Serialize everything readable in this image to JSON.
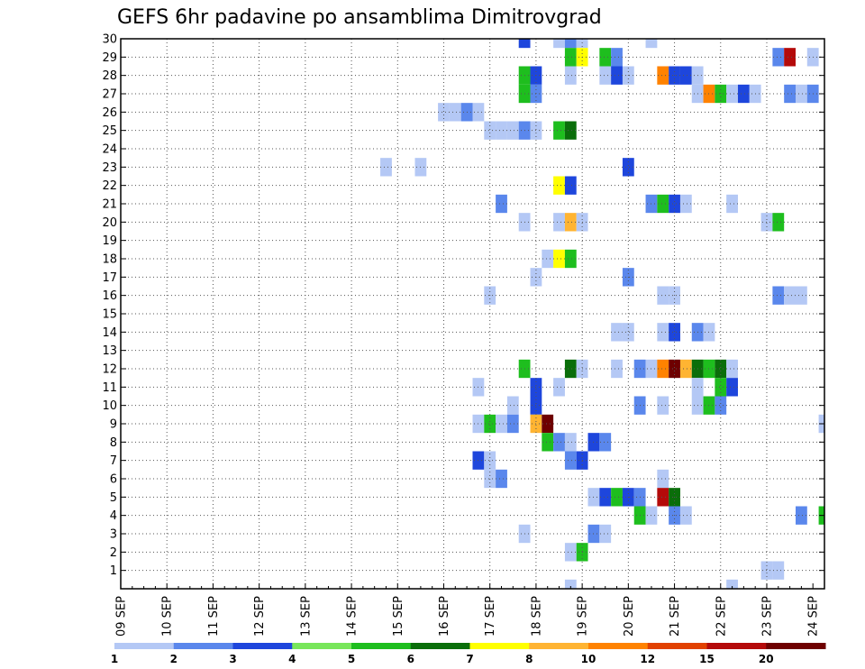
{
  "chart_data": {
    "type": "heatmap",
    "title": "GEFS 6hr padavine po ansamblima Dimitrovgrad",
    "x_tick_labels": [
      "09 SEP",
      "10 SEP",
      "11 SEP",
      "12 SEP",
      "13 SEP",
      "14 SEP",
      "15 SEP",
      "16 SEP",
      "17 SEP",
      "18 SEP",
      "19 SEP",
      "20 SEP",
      "21 SEP",
      "22 SEP",
      "23 SEP",
      "24 SEP"
    ],
    "y_tick_labels": [
      "1",
      "2",
      "3",
      "4",
      "5",
      "6",
      "7",
      "8",
      "9",
      "10",
      "11",
      "12",
      "13",
      "14",
      "15",
      "16",
      "17",
      "18",
      "19",
      "20",
      "21",
      "22",
      "23",
      "24",
      "25",
      "26",
      "27",
      "28",
      "29",
      "30"
    ],
    "xlim": [
      0,
      61
    ],
    "ylim": [
      0,
      30
    ],
    "grid": true,
    "legend": {
      "placement": "bottom",
      "labels": [
        "1",
        "2",
        "3",
        "4",
        "5",
        "6",
        "7",
        "8",
        "10",
        "12",
        "15",
        "20"
      ],
      "colors": [
        "#b4c8f5",
        "#5a87ec",
        "#1e46dc",
        "#78e65a",
        "#1ebe1e",
        "#0a6e0a",
        "#ffff00",
        "#ffb432",
        "#ff8200",
        "#e14100",
        "#b40a0a",
        "#6e0000"
      ]
    },
    "x_unit": "6-hour step from 09 SEP 00Z",
    "y_unit": "ensemble member",
    "cells": [
      {
        "x": 35,
        "y": 30,
        "v": 3
      },
      {
        "x": 38,
        "y": 30,
        "v": 1
      },
      {
        "x": 39,
        "y": 30,
        "v": 2
      },
      {
        "x": 40,
        "y": 30,
        "v": 1
      },
      {
        "x": 46,
        "y": 30,
        "v": 1
      },
      {
        "x": 39,
        "y": 29,
        "v": 5
      },
      {
        "x": 40,
        "y": 29,
        "v": 7
      },
      {
        "x": 42,
        "y": 29,
        "v": 5
      },
      {
        "x": 43,
        "y": 29,
        "v": 2
      },
      {
        "x": 57,
        "y": 29,
        "v": 2
      },
      {
        "x": 58,
        "y": 29,
        "v": 15
      },
      {
        "x": 60,
        "y": 29,
        "v": 1
      },
      {
        "x": 35,
        "y": 28,
        "v": 5
      },
      {
        "x": 36,
        "y": 28,
        "v": 3
      },
      {
        "x": 39,
        "y": 28,
        "v": 1
      },
      {
        "x": 42,
        "y": 28,
        "v": 1
      },
      {
        "x": 43,
        "y": 28,
        "v": 3
      },
      {
        "x": 44,
        "y": 28,
        "v": 1
      },
      {
        "x": 47,
        "y": 28,
        "v": 10
      },
      {
        "x": 48,
        "y": 28,
        "v": 3
      },
      {
        "x": 49,
        "y": 28,
        "v": 3
      },
      {
        "x": 50,
        "y": 28,
        "v": 1
      },
      {
        "x": 35,
        "y": 27,
        "v": 5
      },
      {
        "x": 36,
        "y": 27,
        "v": 2
      },
      {
        "x": 50,
        "y": 27,
        "v": 1
      },
      {
        "x": 51,
        "y": 27,
        "v": 10
      },
      {
        "x": 52,
        "y": 27,
        "v": 5
      },
      {
        "x": 53,
        "y": 27,
        "v": 1
      },
      {
        "x": 54,
        "y": 27,
        "v": 3
      },
      {
        "x": 55,
        "y": 27,
        "v": 1
      },
      {
        "x": 58,
        "y": 27,
        "v": 2
      },
      {
        "x": 59,
        "y": 27,
        "v": 1
      },
      {
        "x": 60,
        "y": 27,
        "v": 2
      },
      {
        "x": 28,
        "y": 26,
        "v": 1
      },
      {
        "x": 29,
        "y": 26,
        "v": 1
      },
      {
        "x": 30,
        "y": 26,
        "v": 2
      },
      {
        "x": 31,
        "y": 26,
        "v": 1
      },
      {
        "x": 32,
        "y": 25,
        "v": 1
      },
      {
        "x": 33,
        "y": 25,
        "v": 1
      },
      {
        "x": 34,
        "y": 25,
        "v": 1
      },
      {
        "x": 35,
        "y": 25,
        "v": 2
      },
      {
        "x": 36,
        "y": 25,
        "v": 1
      },
      {
        "x": 38,
        "y": 25,
        "v": 5
      },
      {
        "x": 39,
        "y": 25,
        "v": 6
      },
      {
        "x": 23,
        "y": 23,
        "v": 1
      },
      {
        "x": 26,
        "y": 23,
        "v": 1
      },
      {
        "x": 44,
        "y": 23,
        "v": 3
      },
      {
        "x": 38,
        "y": 22,
        "v": 7
      },
      {
        "x": 39,
        "y": 22,
        "v": 3
      },
      {
        "x": 33,
        "y": 21,
        "v": 2
      },
      {
        "x": 46,
        "y": 21,
        "v": 2
      },
      {
        "x": 47,
        "y": 21,
        "v": 5
      },
      {
        "x": 48,
        "y": 21,
        "v": 3
      },
      {
        "x": 49,
        "y": 21,
        "v": 1
      },
      {
        "x": 53,
        "y": 21,
        "v": 1
      },
      {
        "x": 35,
        "y": 20,
        "v": 1
      },
      {
        "x": 38,
        "y": 20,
        "v": 1
      },
      {
        "x": 39,
        "y": 20,
        "v": 8
      },
      {
        "x": 40,
        "y": 20,
        "v": 1
      },
      {
        "x": 56,
        "y": 20,
        "v": 1
      },
      {
        "x": 57,
        "y": 20,
        "v": 5
      },
      {
        "x": 37,
        "y": 18,
        "v": 1
      },
      {
        "x": 38,
        "y": 18,
        "v": 7
      },
      {
        "x": 39,
        "y": 18,
        "v": 5
      },
      {
        "x": 36,
        "y": 17,
        "v": 1
      },
      {
        "x": 44,
        "y": 17,
        "v": 2
      },
      {
        "x": 32,
        "y": 16,
        "v": 1
      },
      {
        "x": 47,
        "y": 16,
        "v": 1
      },
      {
        "x": 48,
        "y": 16,
        "v": 1
      },
      {
        "x": 57,
        "y": 16,
        "v": 2
      },
      {
        "x": 58,
        "y": 16,
        "v": 1
      },
      {
        "x": 59,
        "y": 16,
        "v": 1
      },
      {
        "x": 43,
        "y": 14,
        "v": 1
      },
      {
        "x": 44,
        "y": 14,
        "v": 1
      },
      {
        "x": 47,
        "y": 14,
        "v": 1
      },
      {
        "x": 48,
        "y": 14,
        "v": 3
      },
      {
        "x": 50,
        "y": 14,
        "v": 2
      },
      {
        "x": 51,
        "y": 14,
        "v": 1
      },
      {
        "x": 35,
        "y": 12,
        "v": 5
      },
      {
        "x": 39,
        "y": 12,
        "v": 6
      },
      {
        "x": 40,
        "y": 12,
        "v": 1
      },
      {
        "x": 43,
        "y": 12,
        "v": 1
      },
      {
        "x": 45,
        "y": 12,
        "v": 2
      },
      {
        "x": 46,
        "y": 12,
        "v": 1
      },
      {
        "x": 47,
        "y": 12,
        "v": 10
      },
      {
        "x": 48,
        "y": 12,
        "v": 20
      },
      {
        "x": 49,
        "y": 12,
        "v": 8
      },
      {
        "x": 50,
        "y": 12,
        "v": 6
      },
      {
        "x": 51,
        "y": 12,
        "v": 5
      },
      {
        "x": 52,
        "y": 12,
        "v": 6
      },
      {
        "x": 53,
        "y": 12,
        "v": 1
      },
      {
        "x": 31,
        "y": 11,
        "v": 1
      },
      {
        "x": 36,
        "y": 11,
        "v": 3
      },
      {
        "x": 38,
        "y": 11,
        "v": 1
      },
      {
        "x": 50,
        "y": 11,
        "v": 1
      },
      {
        "x": 52,
        "y": 11,
        "v": 5
      },
      {
        "x": 53,
        "y": 11,
        "v": 3
      },
      {
        "x": 34,
        "y": 10,
        "v": 1
      },
      {
        "x": 36,
        "y": 10,
        "v": 3
      },
      {
        "x": 45,
        "y": 10,
        "v": 2
      },
      {
        "x": 47,
        "y": 10,
        "v": 1
      },
      {
        "x": 50,
        "y": 10,
        "v": 1
      },
      {
        "x": 51,
        "y": 10,
        "v": 5
      },
      {
        "x": 52,
        "y": 10,
        "v": 2
      },
      {
        "x": 31,
        "y": 9,
        "v": 1
      },
      {
        "x": 32,
        "y": 9,
        "v": 5
      },
      {
        "x": 33,
        "y": 9,
        "v": 1
      },
      {
        "x": 34,
        "y": 9,
        "v": 2
      },
      {
        "x": 36,
        "y": 9,
        "v": 8
      },
      {
        "x": 37,
        "y": 9,
        "v": 20
      },
      {
        "x": 61,
        "y": 9,
        "v": 1
      },
      {
        "x": 37,
        "y": 8,
        "v": 5
      },
      {
        "x": 38,
        "y": 8,
        "v": 2
      },
      {
        "x": 39,
        "y": 8,
        "v": 1
      },
      {
        "x": 41,
        "y": 8,
        "v": 3
      },
      {
        "x": 42,
        "y": 8,
        "v": 2
      },
      {
        "x": 31,
        "y": 7,
        "v": 3
      },
      {
        "x": 32,
        "y": 7,
        "v": 1
      },
      {
        "x": 39,
        "y": 7,
        "v": 2
      },
      {
        "x": 40,
        "y": 7,
        "v": 3
      },
      {
        "x": 32,
        "y": 6,
        "v": 1
      },
      {
        "x": 33,
        "y": 6,
        "v": 2
      },
      {
        "x": 47,
        "y": 6,
        "v": 1
      },
      {
        "x": 41,
        "y": 5,
        "v": 1
      },
      {
        "x": 42,
        "y": 5,
        "v": 3
      },
      {
        "x": 43,
        "y": 5,
        "v": 5
      },
      {
        "x": 44,
        "y": 5,
        "v": 3
      },
      {
        "x": 45,
        "y": 5,
        "v": 2
      },
      {
        "x": 47,
        "y": 5,
        "v": 15
      },
      {
        "x": 48,
        "y": 5,
        "v": 6
      },
      {
        "x": 45,
        "y": 4,
        "v": 5
      },
      {
        "x": 46,
        "y": 4,
        "v": 1
      },
      {
        "x": 48,
        "y": 4,
        "v": 2
      },
      {
        "x": 49,
        "y": 4,
        "v": 1
      },
      {
        "x": 59,
        "y": 4,
        "v": 2
      },
      {
        "x": 61,
        "y": 4,
        "v": 5
      },
      {
        "x": 35,
        "y": 3,
        "v": 1
      },
      {
        "x": 41,
        "y": 3,
        "v": 2
      },
      {
        "x": 42,
        "y": 3,
        "v": 1
      },
      {
        "x": 39,
        "y": 2,
        "v": 1
      },
      {
        "x": 40,
        "y": 2,
        "v": 5
      },
      {
        "x": 56,
        "y": 1,
        "v": 1
      },
      {
        "x": 57,
        "y": 1,
        "v": 1
      },
      {
        "x": 39,
        "y": 0,
        "v": 1
      },
      {
        "x": 53,
        "y": 0,
        "v": 1
      }
    ]
  }
}
